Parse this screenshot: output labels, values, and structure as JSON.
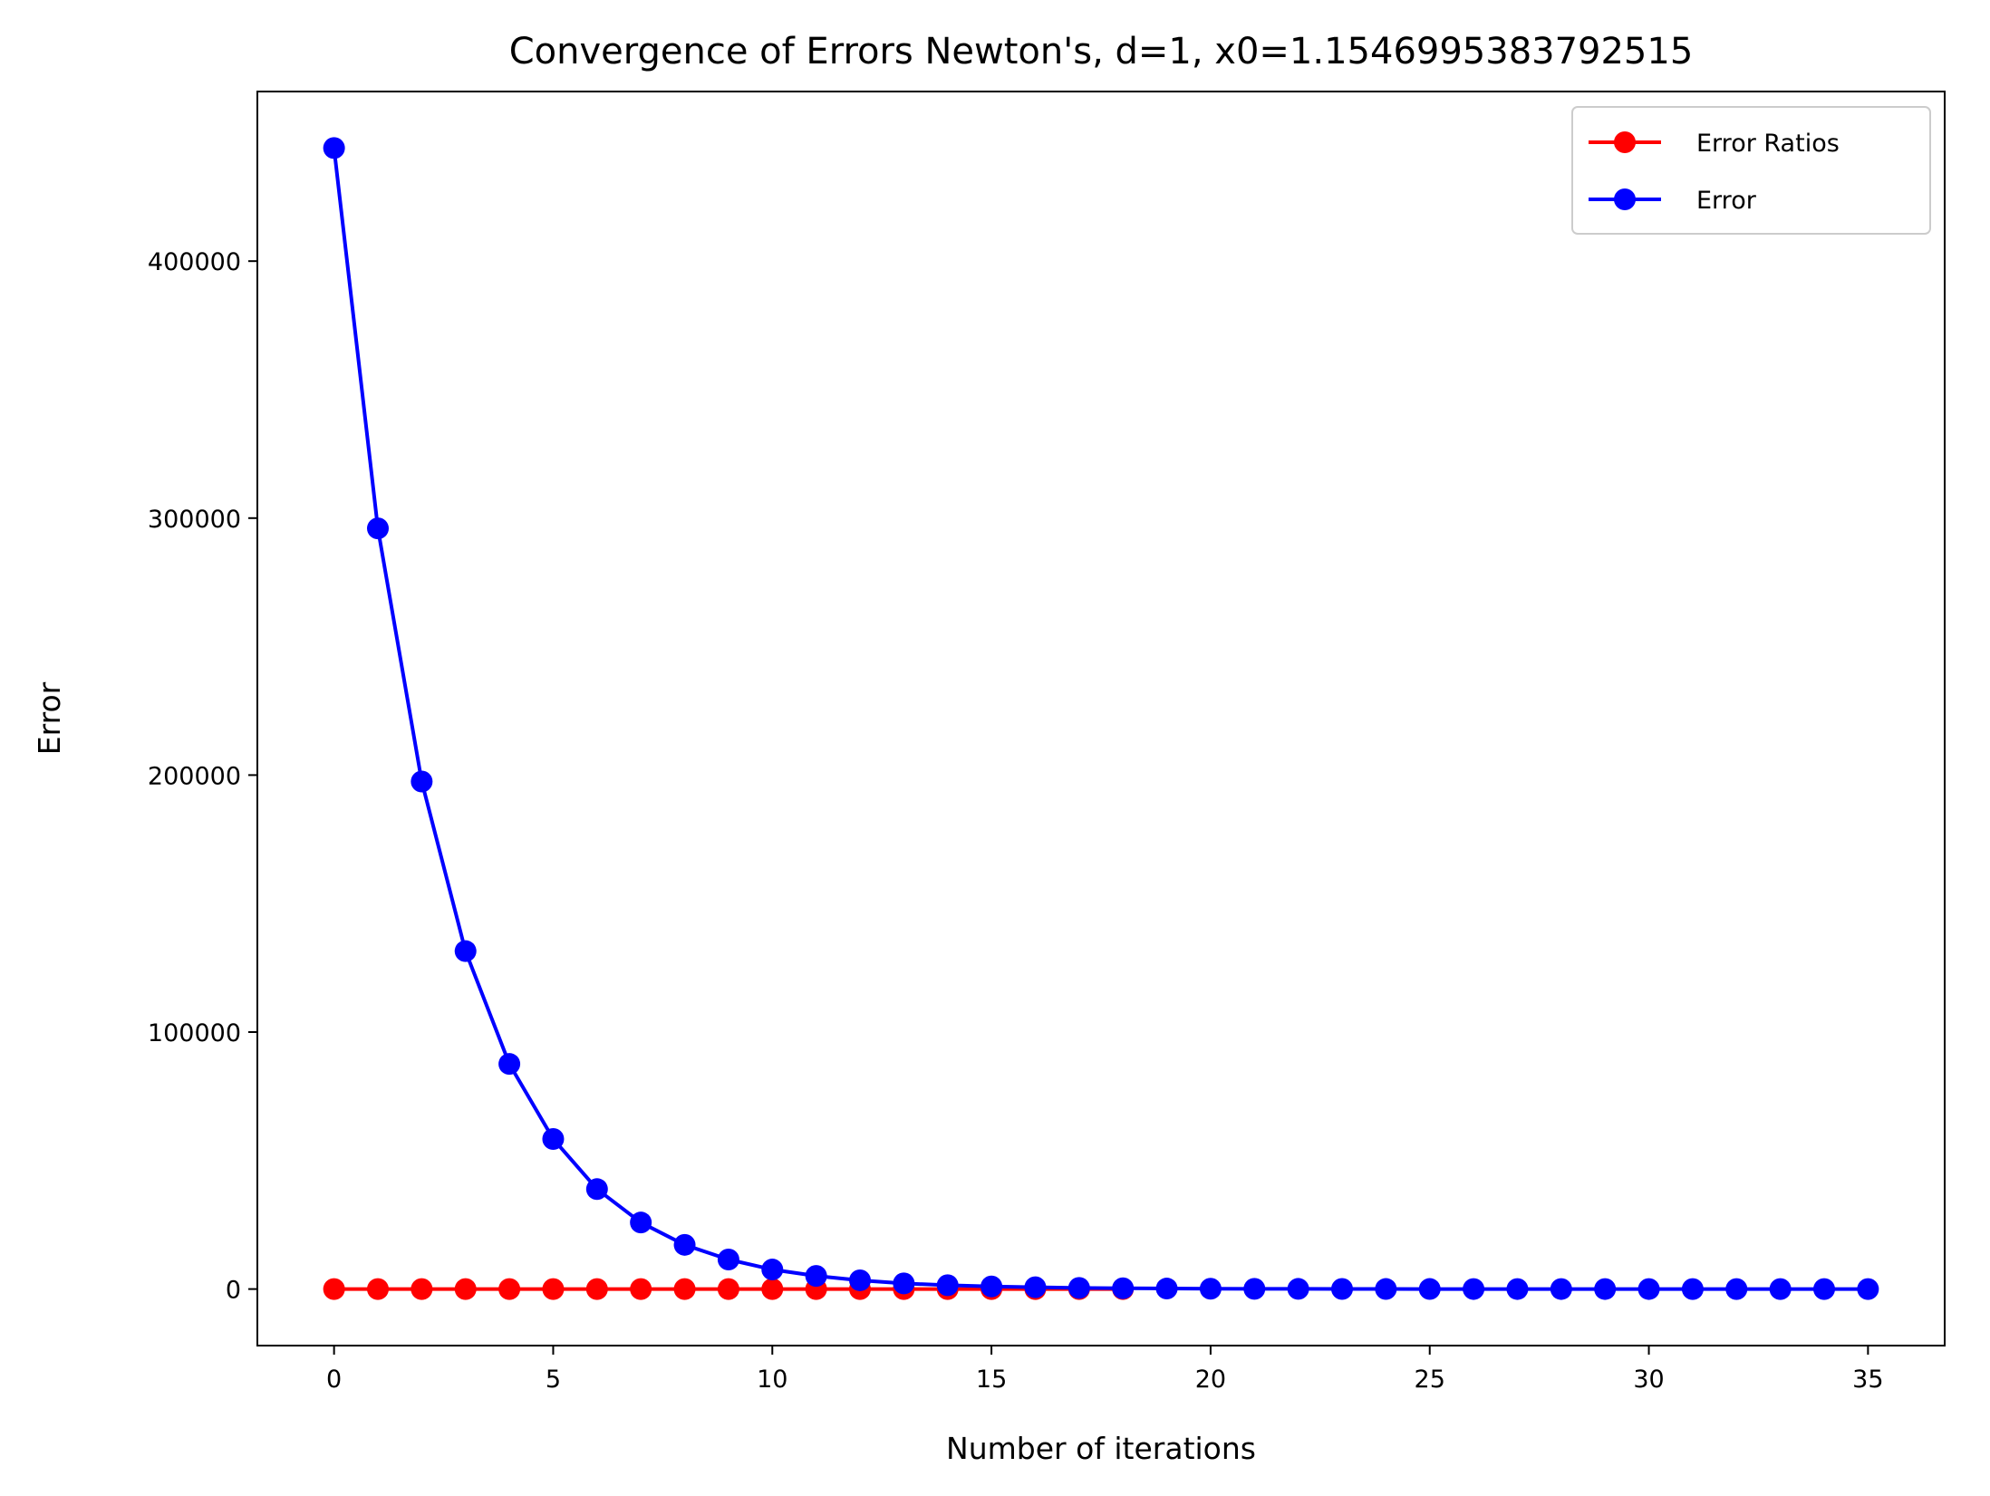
{
  "chart_data": {
    "type": "line",
    "title": "Convergence of Errors Newton's, d=1, x0=1.1546995383792515",
    "xlabel": "Number of iterations",
    "ylabel": "Error",
    "xlim": [
      -1.75,
      36.75
    ],
    "ylim": [
      -22000,
      466000
    ],
    "xticks": [
      0,
      5,
      10,
      15,
      20,
      25,
      30,
      35
    ],
    "yticks": [
      0,
      100000,
      200000,
      300000,
      400000
    ],
    "grid": false,
    "legend_position": "top-right",
    "series": [
      {
        "name": "Error Ratios",
        "color": "#ff0000",
        "marker": "circle",
        "x": [
          0,
          1,
          2,
          3,
          4,
          5,
          6,
          7,
          8,
          9,
          10,
          11,
          12,
          13,
          14,
          15,
          16,
          17,
          18
        ],
        "y": [
          0,
          0,
          0,
          0,
          0,
          0,
          0,
          0,
          0,
          0,
          0,
          0,
          0,
          0,
          0,
          0,
          0,
          0,
          0
        ]
      },
      {
        "name": "Error",
        "color": "#0000ff",
        "marker": "circle",
        "x": [
          0,
          1,
          2,
          3,
          4,
          5,
          6,
          7,
          8,
          9,
          10,
          11,
          12,
          13,
          14,
          15,
          16,
          17,
          18,
          19,
          20,
          21,
          22,
          23,
          24,
          25,
          26,
          27,
          28,
          29,
          30,
          31,
          32,
          33,
          34,
          35
        ],
        "y": [
          444000,
          296000,
          197500,
          131500,
          87600,
          58400,
          38900,
          25900,
          17200,
          11500,
          7600,
          5100,
          3400,
          2200,
          1500,
          1000,
          700,
          440,
          300,
          200,
          130,
          90,
          60,
          40,
          25,
          17,
          11,
          7,
          5,
          3,
          2,
          1,
          1,
          0,
          0,
          0
        ]
      }
    ]
  }
}
